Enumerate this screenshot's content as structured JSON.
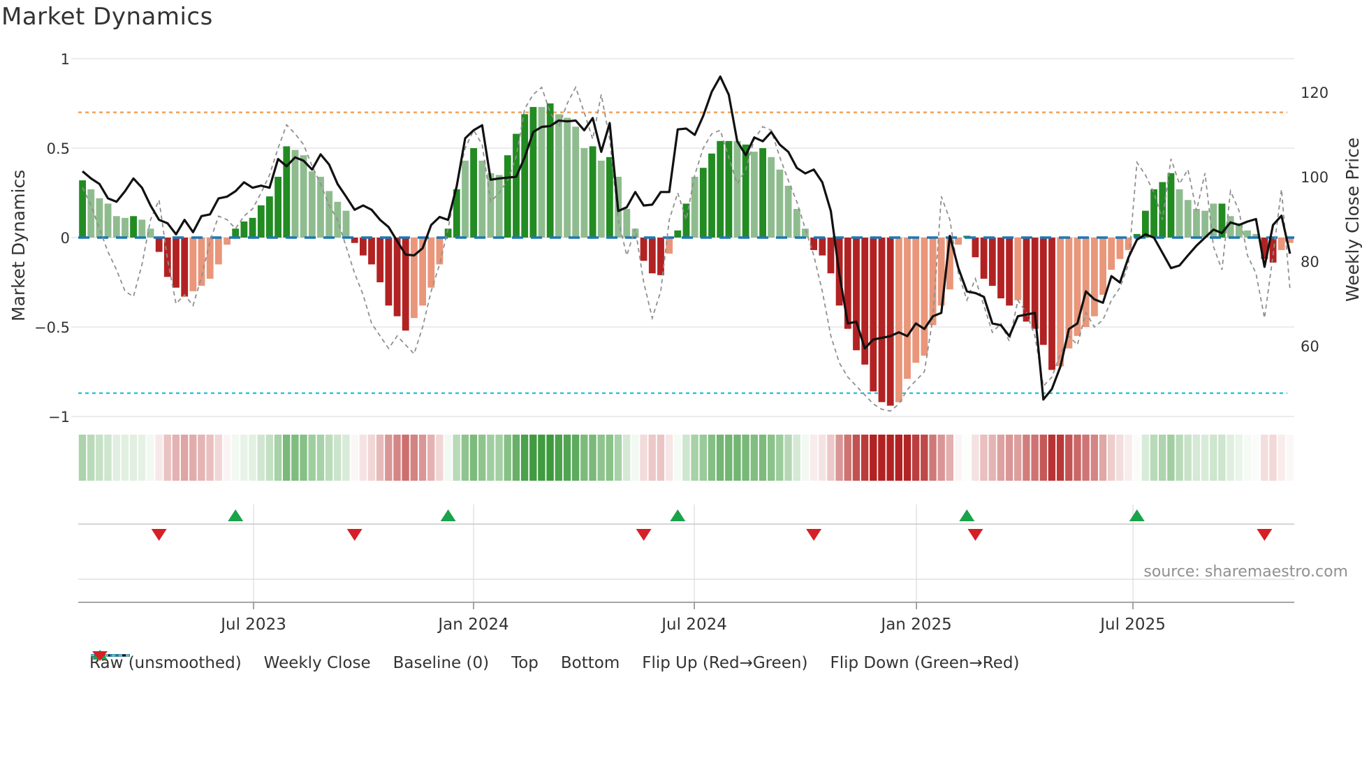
{
  "title": "Market Dynamics",
  "source_credit": "source: sharemaestro.com",
  "axes": {
    "left_label": "Market Dynamics",
    "right_label": "Weekly Close Price",
    "left_ticks": [
      {
        "v": 1,
        "label": "1"
      },
      {
        "v": 0.5,
        "label": "0.5"
      },
      {
        "v": 0,
        "label": "0"
      },
      {
        "v": -0.5,
        "label": "−0.5"
      },
      {
        "v": -1,
        "label": "−1"
      }
    ],
    "right_ticks": [
      {
        "p": 120,
        "label": "120"
      },
      {
        "p": 100,
        "label": "100"
      },
      {
        "p": 80,
        "label": "80"
      },
      {
        "p": 60,
        "label": "60"
      }
    ],
    "x_ticks": [
      {
        "i": 20.62,
        "label": "Jul 2023"
      },
      {
        "i": 46.49,
        "label": "Jan 2024"
      },
      {
        "i": 72.45,
        "label": "Jul 2024"
      },
      {
        "i": 98.57,
        "label": "Jan 2025"
      },
      {
        "i": 124.03,
        "label": "Jul 2025"
      }
    ]
  },
  "chart_data": {
    "type": "bar+line",
    "title": "Market Dynamics",
    "ylabel_left": "Market Dynamics",
    "ylabel_right": "Weekly Close Price",
    "ylim_left": [
      -1,
      1
    ],
    "right_axis_ticks": [
      60,
      80,
      100,
      120
    ],
    "baseline": 0,
    "top_threshold": 0.7,
    "bottom_threshold": -0.87,
    "n_weeks": 143,
    "oscillator": [
      0.32,
      0.27,
      0.22,
      0.19,
      0.12,
      0.11,
      0.12,
      0.1,
      0.05,
      -0.08,
      -0.22,
      -0.28,
      -0.33,
      -0.3,
      -0.27,
      -0.23,
      -0.15,
      -0.04,
      0.05,
      0.09,
      0.11,
      0.18,
      0.23,
      0.34,
      0.51,
      0.49,
      0.46,
      0.37,
      0.34,
      0.26,
      0.2,
      0.15,
      -0.03,
      -0.1,
      -0.15,
      -0.25,
      -0.38,
      -0.44,
      -0.52,
      -0.45,
      -0.38,
      -0.28,
      -0.15,
      0.05,
      0.27,
      0.43,
      0.5,
      0.43,
      0.36,
      0.35,
      0.46,
      0.58,
      0.69,
      0.73,
      0.73,
      0.75,
      0.69,
      0.67,
      0.62,
      0.5,
      0.51,
      0.43,
      0.45,
      0.34,
      0.16,
      0.05,
      -0.13,
      -0.2,
      -0.21,
      -0.09,
      0.04,
      0.19,
      0.34,
      0.39,
      0.47,
      0.54,
      0.54,
      0.54,
      0.52,
      0.48,
      0.5,
      0.45,
      0.38,
      0.29,
      0.16,
      0.05,
      -0.07,
      -0.1,
      -0.2,
      -0.38,
      -0.51,
      -0.63,
      -0.71,
      -0.86,
      -0.92,
      -0.94,
      -0.92,
      -0.79,
      -0.7,
      -0.66,
      -0.49,
      -0.38,
      -0.29,
      -0.04,
      0.01,
      -0.11,
      -0.23,
      -0.27,
      -0.34,
      -0.38,
      -0.35,
      -0.47,
      -0.51,
      -0.6,
      -0.74,
      -0.72,
      -0.62,
      -0.55,
      -0.5,
      -0.44,
      -0.32,
      -0.18,
      -0.12,
      -0.07,
      0.02,
      0.15,
      0.27,
      0.31,
      0.36,
      0.27,
      0.21,
      0.16,
      0.15,
      0.19,
      0.19,
      0.12,
      0.08,
      0.04,
      0.02,
      -0.12,
      -0.14,
      -0.07,
      -0.03
    ],
    "shade": [
      "dg",
      "lg",
      "lg",
      "lg",
      "lg",
      "lg",
      "dg",
      "lg",
      "lg",
      "dr",
      "dr",
      "dr",
      "dr",
      "sr",
      "sr",
      "sr",
      "sr",
      "sr",
      "dg",
      "dg",
      "dg",
      "dg",
      "dg",
      "dg",
      "dg",
      "lg",
      "lg",
      "lg",
      "lg",
      "lg",
      "lg",
      "lg",
      "dr",
      "dr",
      "dr",
      "dr",
      "dr",
      "dr",
      "dr",
      "sr",
      "sr",
      "sr",
      "sr",
      "dg",
      "dg",
      "lg",
      "dg",
      "lg",
      "lg",
      "lg",
      "dg",
      "dg",
      "dg",
      "dg",
      "lg",
      "dg",
      "lg",
      "lg",
      "lg",
      "lg",
      "dg",
      "lg",
      "dg",
      "lg",
      "lg",
      "lg",
      "dr",
      "dr",
      "dr",
      "sr",
      "dg",
      "dg",
      "lg",
      "dg",
      "dg",
      "dg",
      "dg",
      "lg",
      "dg",
      "lg",
      "dg",
      "lg",
      "lg",
      "lg",
      "lg",
      "lg",
      "dr",
      "dr",
      "dr",
      "dr",
      "dr",
      "dr",
      "dr",
      "dr",
      "dr",
      "dr",
      "sr",
      "sr",
      "sr",
      "sr",
      "sr",
      "sr",
      "sr",
      "sr",
      "dg",
      "dr",
      "dr",
      "dr",
      "dr",
      "dr",
      "sr",
      "dr",
      "dr",
      "dr",
      "dr",
      "sr",
      "sr",
      "sr",
      "sr",
      "sr",
      "sr",
      "sr",
      "sr",
      "sr",
      "dg",
      "dg",
      "dg",
      "dg",
      "dg",
      "lg",
      "lg",
      "lg",
      "lg",
      "lg",
      "dg",
      "lg",
      "lg",
      "lg",
      "lg",
      "dr",
      "dr",
      "sr",
      "sr"
    ],
    "weekly_close": [
      101.3,
      99.6,
      98.3,
      94.9,
      94.1,
      96.6,
      99.6,
      97.4,
      93.2,
      89.8,
      89.0,
      86.4,
      89.8,
      86.9,
      90.7,
      91.1,
      94.9,
      95.3,
      96.6,
      98.7,
      97.4,
      97.9,
      97.4,
      104.2,
      102.5,
      104.6,
      103.8,
      101.7,
      105.3,
      102.9,
      98.3,
      95.3,
      92.2,
      93.2,
      92.2,
      89.8,
      88.1,
      84.8,
      81.6,
      81.4,
      83.1,
      88.6,
      90.5,
      89.8,
      97.7,
      109.1,
      111.0,
      112.2,
      99.3,
      99.6,
      99.8,
      100.0,
      104.6,
      110.6,
      111.8,
      112.0,
      113.3,
      113.1,
      113.3,
      111.0,
      113.9,
      105.9,
      112.7,
      91.9,
      92.8,
      96.4,
      93.2,
      93.4,
      96.4,
      96.4,
      111.2,
      111.4,
      109.9,
      114.4,
      120.1,
      123.7,
      119.4,
      108.4,
      105.1,
      109.3,
      108.4,
      110.6,
      107.6,
      105.9,
      102.1,
      100.8,
      101.7,
      98.7,
      91.9,
      77.1,
      65.3,
      65.7,
      59.4,
      61.5,
      61.9,
      62.3,
      63.2,
      62.3,
      65.3,
      64.0,
      67.0,
      67.8,
      86.0,
      78.4,
      72.9,
      72.5,
      71.6,
      65.3,
      64.9,
      62.3,
      67.0,
      67.4,
      67.8,
      47.3,
      49.8,
      55.1,
      64.0,
      65.3,
      72.9,
      71.0,
      70.2,
      76.5,
      75.0,
      80.9,
      85.1,
      86.4,
      85.6,
      82.0,
      78.4,
      79.0,
      81.4,
      83.7,
      85.6,
      87.5,
      86.7,
      89.2,
      88.6,
      89.4,
      90.0,
      78.7,
      88.6,
      90.8,
      81.8
    ],
    "raw_unsmoothed": [
      0.28,
      0.18,
      0.05,
      -0.08,
      -0.18,
      -0.3,
      -0.33,
      -0.15,
      0.1,
      0.21,
      -0.12,
      -0.37,
      -0.32,
      -0.38,
      -0.22,
      -0.02,
      0.12,
      0.1,
      0.05,
      0.12,
      0.16,
      0.25,
      0.35,
      0.5,
      0.63,
      0.58,
      0.52,
      0.4,
      0.3,
      0.18,
      0.1,
      -0.05,
      -0.2,
      -0.32,
      -0.48,
      -0.55,
      -0.62,
      -0.55,
      -0.6,
      -0.65,
      -0.5,
      -0.3,
      -0.15,
      0.05,
      0.3,
      0.5,
      0.6,
      0.52,
      0.2,
      0.25,
      0.32,
      0.45,
      0.72,
      0.8,
      0.84,
      0.7,
      0.62,
      0.75,
      0.84,
      0.7,
      0.55,
      0.8,
      0.55,
      0.1,
      -0.1,
      0.05,
      -0.25,
      -0.45,
      -0.3,
      0.1,
      0.25,
      0.1,
      0.35,
      0.5,
      0.58,
      0.6,
      0.45,
      0.3,
      0.38,
      0.55,
      0.62,
      0.6,
      0.45,
      0.32,
      0.2,
      0.05,
      -0.1,
      -0.3,
      -0.55,
      -0.7,
      -0.78,
      -0.83,
      -0.88,
      -0.93,
      -0.96,
      -0.97,
      -0.93,
      -0.85,
      -0.8,
      -0.75,
      -0.45,
      0.23,
      0.1,
      -0.2,
      -0.35,
      -0.23,
      -0.38,
      -0.53,
      -0.48,
      -0.58,
      -0.35,
      -0.42,
      -0.55,
      -0.83,
      -0.78,
      -0.65,
      -0.55,
      -0.6,
      -0.42,
      -0.5,
      -0.46,
      -0.35,
      -0.28,
      -0.15,
      0.42,
      0.35,
      0.25,
      0.1,
      0.44,
      0.3,
      0.38,
      0.15,
      0.36,
      -0.05,
      -0.18,
      0.26,
      0.15,
      -0.1,
      -0.2,
      -0.45,
      -0.1,
      0.27,
      -0.29
    ],
    "flip_up_weeks": [
      18,
      43,
      70,
      104,
      124
    ],
    "flip_down_weeks": [
      9,
      32,
      66,
      86,
      105,
      139
    ]
  },
  "legend": {
    "items": [
      {
        "label": "Raw (unsmoothed)",
        "swatch": "dash-gray"
      },
      {
        "label": "Weekly Close",
        "swatch": "solid-black"
      },
      {
        "label": "Baseline (0)",
        "swatch": "dash-blue"
      },
      {
        "label": "Top",
        "swatch": "dot-orange"
      },
      {
        "label": "Bottom",
        "swatch": "dot-cyan"
      },
      {
        "label": "Flip Up (Red→Green)",
        "swatch": "tri-up"
      },
      {
        "label": "Flip Down (Green→Red)",
        "swatch": "tri-down"
      }
    ]
  },
  "colors": {
    "dark_green": "#228B22",
    "light_green": "#8FBC8F",
    "dark_red": "#B22222",
    "salmon": "#E9967A",
    "close_line": "#111111",
    "raw_line": "#8f8f8f",
    "baseline": "#1f77b4",
    "top_line": "#f4a460",
    "bottom_line": "#3cc6dd",
    "flip_up": "#1aa34a",
    "flip_down": "#d61f26",
    "grid": "#ececec",
    "text": "#333333",
    "source_text": "#909090"
  }
}
